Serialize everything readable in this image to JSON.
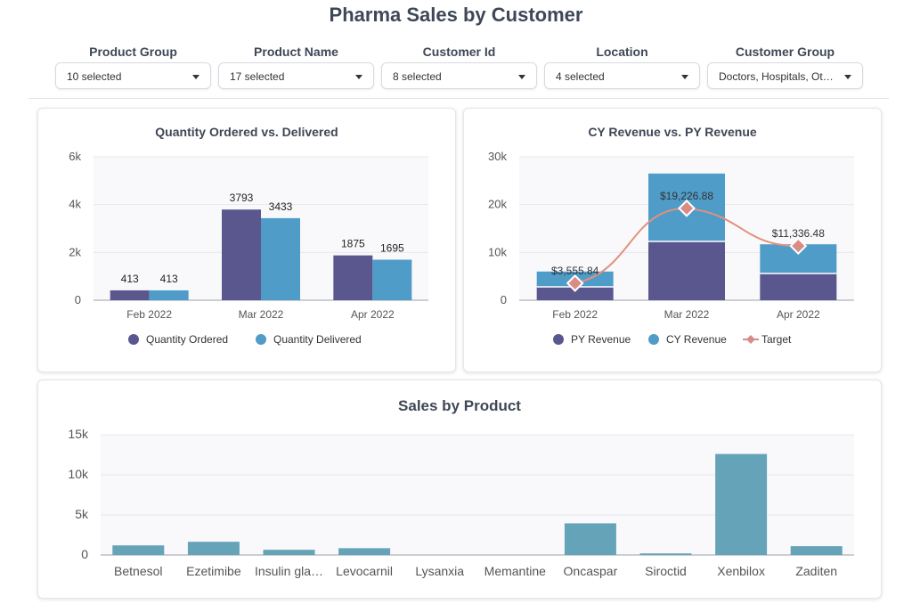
{
  "page": {
    "title": "Pharma Sales by Customer"
  },
  "filters": [
    {
      "label": "Product Group",
      "value": "10 selected"
    },
    {
      "label": "Product Name",
      "value": "17 selected"
    },
    {
      "label": "Customer Id",
      "value": "8 selected"
    },
    {
      "label": "Location",
      "value": "4 selected"
    },
    {
      "label": "Customer Group",
      "value": "Doctors, Hospitals, Ot…"
    }
  ],
  "colors": {
    "ordered": "#5a578f",
    "delivered": "#4f9cc8",
    "py": "#5a578f",
    "cy": "#4f9cc8",
    "target": "#e2917c",
    "targetMarker": "#d98c86",
    "product": "#65a3b8"
  },
  "chart_data": [
    {
      "type": "bar",
      "title": "Quantity Ordered vs. Delivered",
      "categories": [
        "Feb 2022",
        "Mar 2022",
        "Apr 2022"
      ],
      "series": [
        {
          "name": "Quantity Ordered",
          "values": [
            413,
            3793,
            1875
          ],
          "labels": [
            "413",
            "3793",
            "1875"
          ]
        },
        {
          "name": "Quantity Delivered",
          "values": [
            413,
            3433,
            1695
          ],
          "labels": [
            "413",
            "3433",
            "1695"
          ]
        }
      ],
      "yticks": [
        0,
        2000,
        4000,
        6000
      ],
      "yticklabels": [
        "0",
        "2k",
        "4k",
        "6k"
      ],
      "ylim": [
        0,
        6000
      ],
      "grid": true,
      "legend": "bottom"
    },
    {
      "type": "bar",
      "stacked": true,
      "title": "CY Revenue vs. PY Revenue",
      "categories": [
        "Feb 2022",
        "Mar 2022",
        "Apr 2022"
      ],
      "series": [
        {
          "name": "PY Revenue",
          "values": [
            2800,
            12300,
            5600
          ]
        },
        {
          "name": "CY Revenue",
          "values": [
            3200,
            14200,
            6100
          ]
        },
        {
          "name": "Target",
          "type": "line",
          "values": [
            3555.84,
            19226.88,
            11336.48
          ],
          "labels": [
            "$3,555.84",
            "$19,226.88",
            "$11,336.48"
          ]
        }
      ],
      "yticks": [
        0,
        10000,
        20000,
        30000
      ],
      "yticklabels": [
        "0",
        "10k",
        "20k",
        "30k"
      ],
      "ylim": [
        0,
        30000
      ],
      "grid": true,
      "legend": "bottom"
    },
    {
      "type": "bar",
      "title": "Sales by Product",
      "categories": [
        "Betnesol",
        "Ezetimibe",
        "Insulin gla…",
        "Levocarnil",
        "Lysanxia",
        "Memantine",
        "Oncaspar",
        "Siroctid",
        "Xenbilox",
        "Zaditen"
      ],
      "values": [
        1200,
        1650,
        650,
        850,
        0,
        0,
        3950,
        200,
        12600,
        1100
      ],
      "yticks": [
        0,
        5000,
        10000,
        15000
      ],
      "yticklabels": [
        "0",
        "5k",
        "10k",
        "15k"
      ],
      "ylim": [
        0,
        15000
      ],
      "grid": true
    }
  ]
}
